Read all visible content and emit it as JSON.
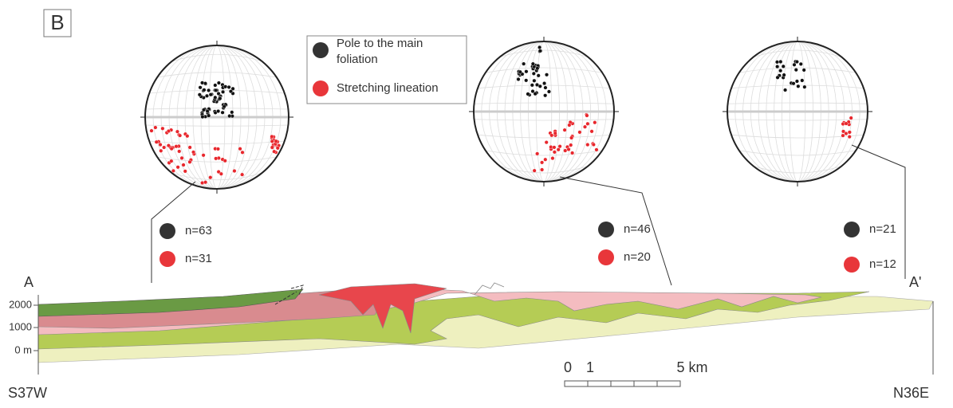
{
  "panel_label": "B",
  "legend": {
    "items": [
      {
        "label": "Pole to the main foliation"
      },
      {
        "label": "Stretching lineation"
      }
    ]
  },
  "stereonets": [
    {
      "black_count": "n=63",
      "red_count": "n=31"
    },
    {
      "black_count": "n=46",
      "red_count": "n=20"
    },
    {
      "black_count": "n=21",
      "red_count": "n=12"
    }
  ],
  "section": {
    "start_label": "A",
    "end_label": "A'",
    "left_direction": "S37W",
    "right_direction": "N36E",
    "elevation_labels": [
      "2000",
      "1000",
      "0 m"
    ]
  },
  "scale_bar": {
    "labels": [
      "0",
      "1",
      "5 km"
    ]
  }
}
